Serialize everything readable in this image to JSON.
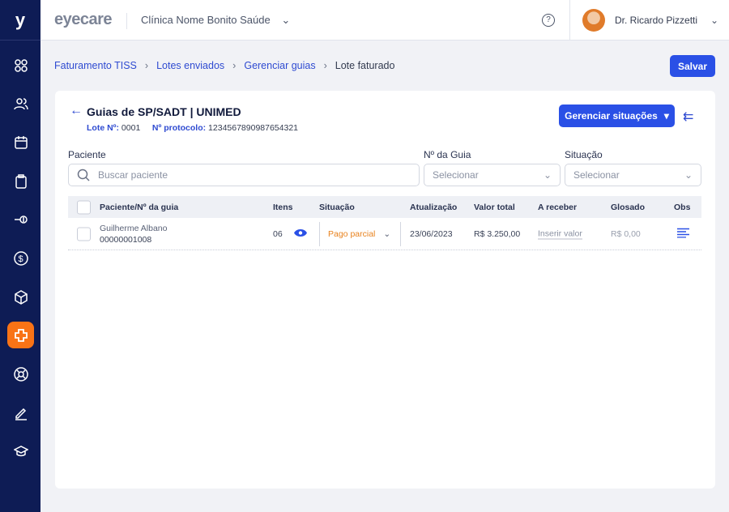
{
  "sidebar": {
    "logo": "y",
    "items": [
      "dashboard",
      "patients",
      "calendar",
      "clipboard",
      "key",
      "finance",
      "inventory",
      "tiss",
      "support",
      "edit",
      "education"
    ],
    "active": "tiss"
  },
  "header": {
    "brand": "eyecare",
    "clinic": "Clínica Nome Bonito Saúde",
    "help": "?",
    "user": "Dr. Ricardo Pizzetti"
  },
  "breadcrumb": [
    "Faturamento TISS",
    "Lotes enviados",
    "Gerenciar guias",
    "Lote faturado"
  ],
  "save_label": "Salvar",
  "card": {
    "title": "Guias de SP/SADT | UNIMED",
    "lote_label": "Lote Nº:",
    "lote": "0001",
    "protocolo_label": "Nº protocolo:",
    "protocolo": "1234567890987654321",
    "manage_label": "Gerenciar situações"
  },
  "filters": {
    "paciente_label": "Paciente",
    "paciente_placeholder": "Buscar paciente",
    "guia_label": "Nº da Guia",
    "guia_value": "Selecionar",
    "situacao_label": "Situação",
    "situacao_value": "Selecionar"
  },
  "table": {
    "headers": [
      "Paciente/Nº da guia",
      "Itens",
      "Situação",
      "Atualização",
      "Valor total",
      "A receber",
      "Glosado",
      "Obs"
    ],
    "rows": [
      {
        "paciente": "Guilherme Albano",
        "guia": "00000001008",
        "itens": "06",
        "situacao": "Pago parcial",
        "atualizacao": "23/06/2023",
        "valor_total": "R$ 3.250,00",
        "a_receber": "Inserir valor",
        "glosado": "R$ 0,00"
      }
    ]
  },
  "colors": {
    "sidebar": "#0e1c55",
    "primary": "#2a50e6",
    "active": "#f97316",
    "status": "#e8821e"
  }
}
